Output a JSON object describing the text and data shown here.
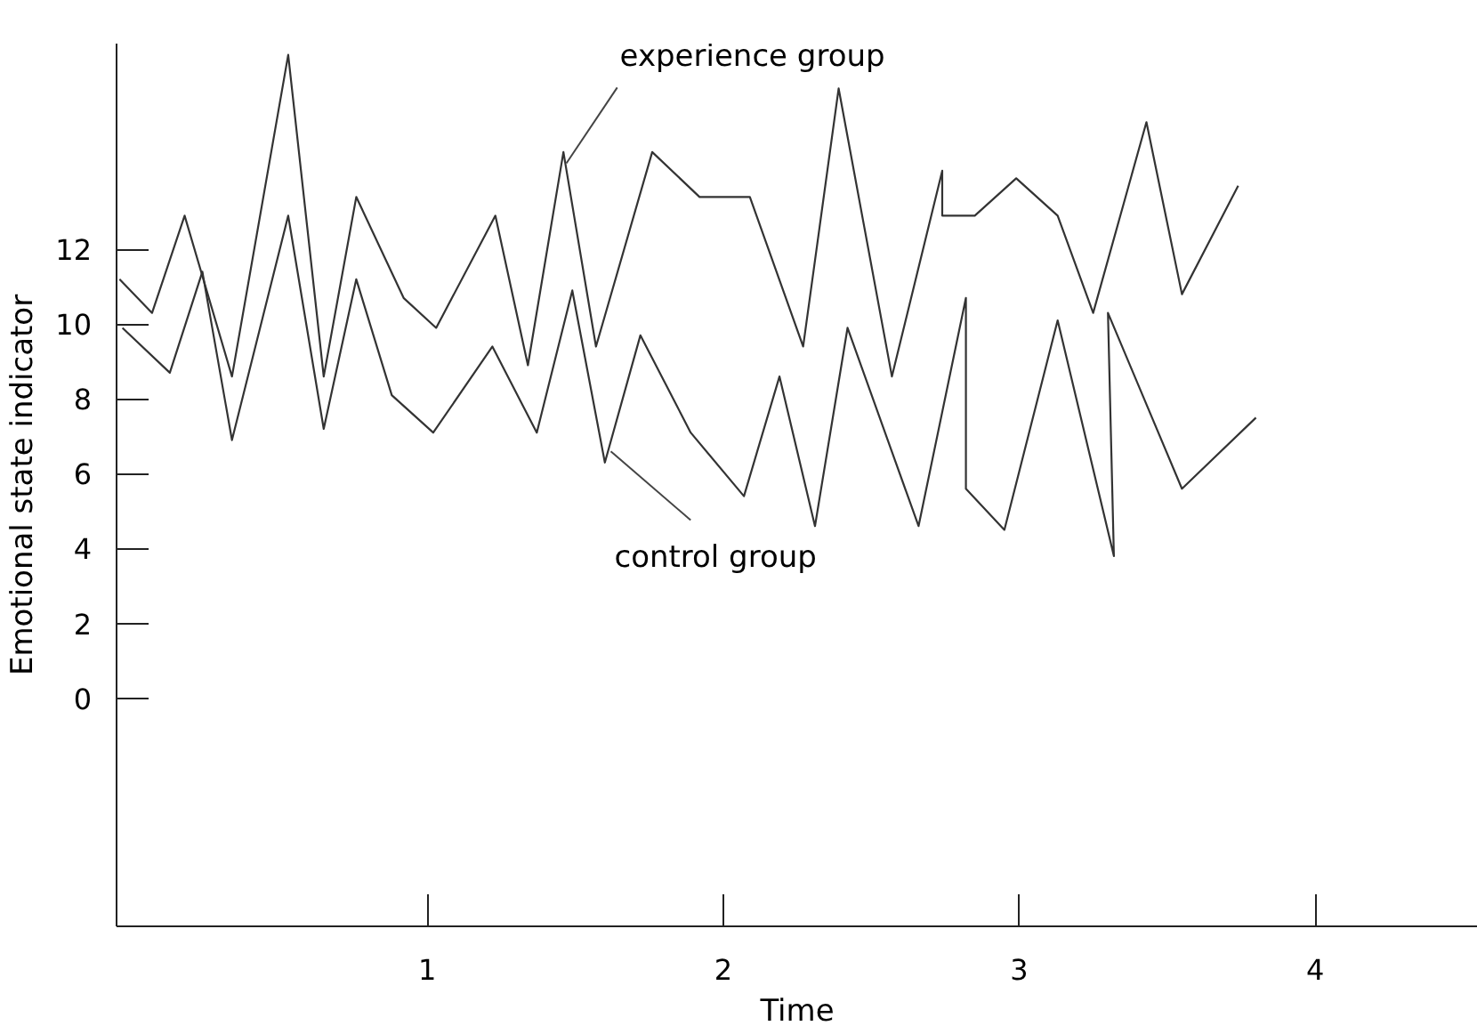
{
  "chart_data": {
    "type": "line",
    "xlabel": "Time",
    "ylabel": "Emotional state indicator",
    "xlim": [
      -0.05,
      4.55
    ],
    "ylim": [
      -6.1,
      17.5
    ],
    "xticks": [
      1,
      2,
      3,
      4
    ],
    "yticks": [
      0,
      2,
      4,
      6,
      8,
      10,
      12
    ],
    "series": [
      {
        "color": "#333333",
        "x": [
          -0.04,
          0.07,
          0.18,
          0.34,
          0.53,
          0.65,
          0.76,
          0.92,
          1.03,
          1.23,
          1.34,
          1.46,
          1.57,
          1.76,
          1.92,
          2.09,
          2.27,
          2.39,
          2.57,
          2.74,
          2.74,
          2.85,
          2.99,
          3.13,
          3.25,
          3.43,
          3.55,
          3.74
        ],
        "values": [
          11.2,
          10.3,
          12.9,
          8.6,
          17.2,
          8.6,
          13.4,
          10.7,
          9.9,
          12.9,
          8.9,
          14.6,
          9.4,
          14.6,
          13.4,
          13.4,
          9.4,
          16.3,
          8.6,
          14.1,
          12.9,
          12.9,
          13.9,
          12.9,
          10.3,
          15.4,
          10.8,
          13.7
        ]
      },
      {
        "color": "#333333",
        "x": [
          -0.03,
          0.13,
          0.24,
          0.34,
          0.53,
          0.65,
          0.76,
          0.88,
          1.02,
          1.22,
          1.37,
          1.49,
          1.6,
          1.72,
          1.89,
          2.07,
          2.19,
          2.31,
          2.42,
          2.66,
          2.82,
          2.82,
          2.95,
          3.13,
          3.32,
          3.3,
          3.55,
          3.8
        ],
        "values": [
          9.9,
          8.7,
          11.4,
          6.9,
          12.9,
          7.2,
          11.2,
          8.1,
          7.1,
          9.4,
          7.1,
          10.9,
          6.3,
          9.7,
          7.1,
          5.4,
          8.6,
          4.6,
          9.9,
          4.6,
          10.7,
          5.6,
          4.5,
          10.1,
          3.8,
          10.3,
          5.6,
          7.5
        ]
      }
    ],
    "annotations": [
      {
        "text": "experience group",
        "x": 1.47,
        "y": 14.3
      },
      {
        "text": "control group",
        "x": 1.62,
        "y": 6.6
      }
    ]
  }
}
